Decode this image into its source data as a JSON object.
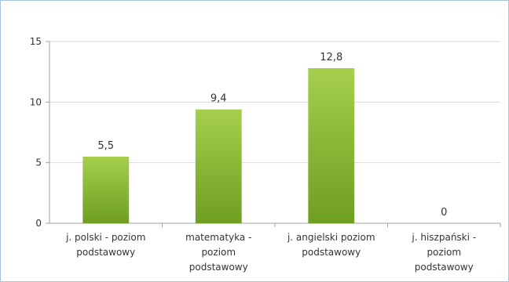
{
  "chart_data": {
    "type": "bar",
    "categories": [
      [
        "j. polski - poziom",
        "podstawowy"
      ],
      [
        "matematyka -",
        "poziom",
        "podstawowy"
      ],
      [
        "j. angielski poziom",
        "podstawowy"
      ],
      [
        "j. hiszpański -",
        "poziom",
        "podstawowy"
      ]
    ],
    "values": [
      5.5,
      9.4,
      12.8,
      0
    ],
    "value_labels": [
      "5,5",
      "9,4",
      "12,8",
      "0"
    ],
    "ylim": [
      0,
      15
    ],
    "yticks": [
      0,
      5,
      10,
      15
    ],
    "grid": true,
    "title": "",
    "xlabel": "",
    "ylabel": "",
    "colors": {
      "bar_light": "#a6cf4e",
      "bar_dark": "#6e9e22",
      "grid": "#d9d9d9",
      "axis": "#a0a0a0",
      "frame": "#a9c4e0"
    }
  }
}
